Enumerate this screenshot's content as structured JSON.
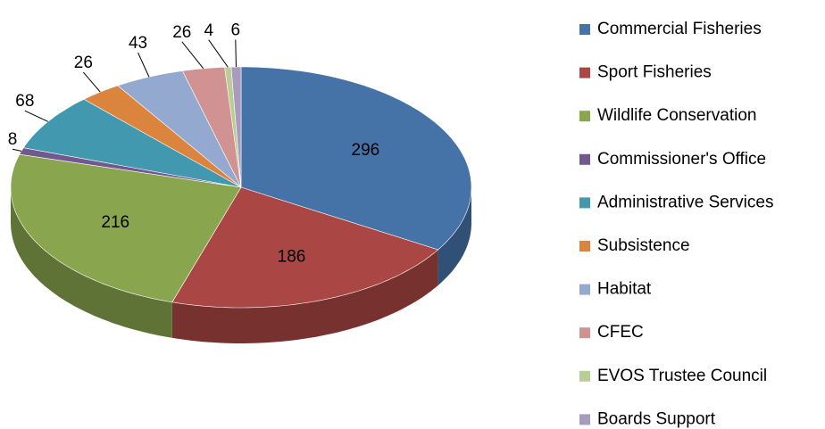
{
  "chart_data": {
    "type": "pie",
    "categories": [
      "Commercial Fisheries",
      "Sport Fisheries",
      "Wildlife Conservation",
      "Commissioner's Office",
      "Administrative Services",
      "Subsistence",
      "Habitat",
      "CFEC",
      "EVOS Trustee Council",
      "Boards Support"
    ],
    "values": [
      296,
      186,
      216,
      8,
      68,
      26,
      43,
      26,
      4,
      6
    ],
    "colors": [
      "#4572a7",
      "#aa4643",
      "#89a54e",
      "#71588f",
      "#4198af",
      "#db843d",
      "#93a9cf",
      "#d19392",
      "#b9cd96",
      "#a99bbd"
    ],
    "legend": "right",
    "three_d": true
  }
}
